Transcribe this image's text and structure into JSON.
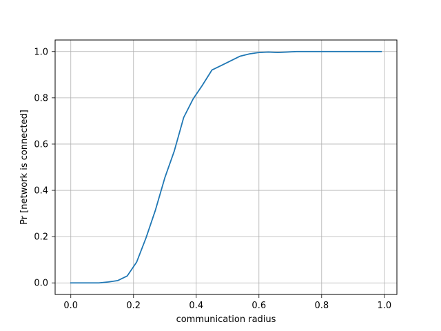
{
  "chart_data": {
    "type": "line",
    "title": "",
    "xlabel": "communication radius",
    "ylabel": "Pr [network is connected]",
    "xlim": [
      -0.05,
      1.04
    ],
    "ylim": [
      -0.05,
      1.05
    ],
    "x_ticks": [
      0.0,
      0.2,
      0.4,
      0.6,
      0.8,
      1.0
    ],
    "x_tick_labels": [
      "0.0",
      "0.2",
      "0.4",
      "0.6",
      "0.8",
      "1.0"
    ],
    "y_ticks": [
      0.0,
      0.2,
      0.4,
      0.6,
      0.8,
      1.0
    ],
    "y_tick_labels": [
      "0.0",
      "0.2",
      "0.4",
      "0.6",
      "0.8",
      "1.0"
    ],
    "grid": true,
    "legend": "none",
    "series": [
      {
        "color": "#1f77b4",
        "x": [
          0.0,
          0.03,
          0.06,
          0.09,
          0.12,
          0.15,
          0.18,
          0.21,
          0.24,
          0.27,
          0.3,
          0.33,
          0.36,
          0.39,
          0.42,
          0.45,
          0.48,
          0.51,
          0.54,
          0.57,
          0.6,
          0.63,
          0.66,
          0.69,
          0.72,
          0.75,
          0.78,
          0.81,
          0.84,
          0.87,
          0.9,
          0.93,
          0.96,
          0.99
        ],
        "y": [
          0.0,
          0.0,
          0.0,
          0.0,
          0.004,
          0.01,
          0.03,
          0.09,
          0.195,
          0.315,
          0.455,
          0.57,
          0.715,
          0.795,
          0.855,
          0.92,
          0.94,
          0.96,
          0.98,
          0.99,
          0.996,
          0.998,
          0.996,
          0.998,
          1.0,
          1.0,
          1.0,
          1.0,
          1.0,
          1.0,
          1.0,
          1.0,
          1.0,
          1.0
        ]
      }
    ]
  }
}
